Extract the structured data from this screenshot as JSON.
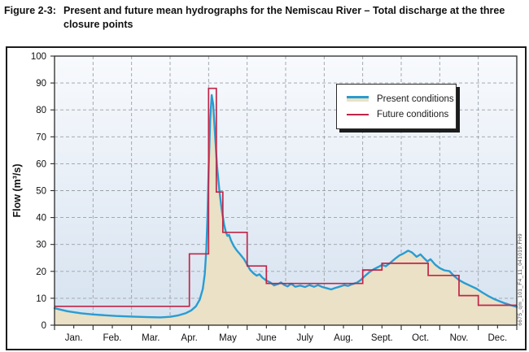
{
  "caption": {
    "label": "Figure 2-3:",
    "text": "Present and future mean hydrographs for the Nemiscau River – Total discharge at the three closure points"
  },
  "watermark": "6675_qm_101_F4_11_041019.FH9",
  "legend": {
    "items": [
      {
        "label": "Present conditions",
        "kind": "present"
      },
      {
        "label": "Future conditions",
        "kind": "future"
      }
    ]
  },
  "colors": {
    "present_line": "#2a9cd1",
    "present_fill": "#eae1c6",
    "future_line": "#c02547",
    "plot_bg_top": "#f8fafd",
    "plot_bg_bottom": "#d6e2f0",
    "gridline": "#9aa0a8",
    "frame": "#2a2a2a"
  },
  "chart_data": {
    "type": "line",
    "title": "Present and future mean hydrographs for the Nemiscau River – Total discharge at the three closure points",
    "xlabel": "",
    "ylabel": "Flow (m³/s)",
    "ylim": [
      0,
      100
    ],
    "yticks": [
      0,
      10,
      20,
      30,
      40,
      50,
      60,
      70,
      80,
      90,
      100
    ],
    "months": [
      "Jan.",
      "Feb.",
      "Mar.",
      "Apr.",
      "May",
      "June",
      "July",
      "Aug.",
      "Sept.",
      "Oct.",
      "Nov.",
      "Dec."
    ],
    "grid": true,
    "legend_position": "upper-right-inside",
    "x_unit": "month (0 = Jan 1, 12 = Dec 31)",
    "series": [
      {
        "name": "Present conditions",
        "style": "line-with-area",
        "points": [
          [
            0.0,
            6.3
          ],
          [
            0.15,
            5.8
          ],
          [
            0.33,
            5.2
          ],
          [
            0.5,
            4.8
          ],
          [
            0.7,
            4.4
          ],
          [
            1.0,
            4.0
          ],
          [
            1.3,
            3.7
          ],
          [
            1.6,
            3.4
          ],
          [
            2.0,
            3.2
          ],
          [
            2.4,
            3.0
          ],
          [
            2.75,
            2.9
          ],
          [
            3.0,
            3.1
          ],
          [
            3.2,
            3.6
          ],
          [
            3.4,
            4.4
          ],
          [
            3.55,
            5.5
          ],
          [
            3.67,
            7.0
          ],
          [
            3.77,
            9.5
          ],
          [
            3.85,
            13.5
          ],
          [
            3.9,
            19
          ],
          [
            3.94,
            28
          ],
          [
            3.97,
            40
          ],
          [
            4.0,
            57
          ],
          [
            4.04,
            76
          ],
          [
            4.08,
            85.5
          ],
          [
            4.12,
            82
          ],
          [
            4.17,
            70
          ],
          [
            4.22,
            59
          ],
          [
            4.28,
            50
          ],
          [
            4.34,
            43
          ],
          [
            4.4,
            37.5
          ],
          [
            4.45,
            34.5
          ],
          [
            4.49,
            33.2
          ],
          [
            4.53,
            33.6
          ],
          [
            4.58,
            31.5
          ],
          [
            4.65,
            29.5
          ],
          [
            4.73,
            27.8
          ],
          [
            4.82,
            26.3
          ],
          [
            4.92,
            24.5
          ],
          [
            5.0,
            22.5
          ],
          [
            5.08,
            20.5
          ],
          [
            5.17,
            19.2
          ],
          [
            5.25,
            18.4
          ],
          [
            5.32,
            18.9
          ],
          [
            5.4,
            17.6
          ],
          [
            5.5,
            16.6
          ],
          [
            5.6,
            15.9
          ],
          [
            5.7,
            14.8
          ],
          [
            5.8,
            15.3
          ],
          [
            5.88,
            15.9
          ],
          [
            5.96,
            15.0
          ],
          [
            6.05,
            14.4
          ],
          [
            6.14,
            15.4
          ],
          [
            6.25,
            14.3
          ],
          [
            6.38,
            14.7
          ],
          [
            6.5,
            14.2
          ],
          [
            6.62,
            14.9
          ],
          [
            6.74,
            14.3
          ],
          [
            6.84,
            14.9
          ],
          [
            6.95,
            14.2
          ],
          [
            7.05,
            13.8
          ],
          [
            7.18,
            13.3
          ],
          [
            7.3,
            13.9
          ],
          [
            7.42,
            14.4
          ],
          [
            7.52,
            14.9
          ],
          [
            7.62,
            14.6
          ],
          [
            7.72,
            15.2
          ],
          [
            7.85,
            15.8
          ],
          [
            7.95,
            16.8
          ],
          [
            8.05,
            18.2
          ],
          [
            8.18,
            19.8
          ],
          [
            8.3,
            20.9
          ],
          [
            8.4,
            21.6
          ],
          [
            8.5,
            22.4
          ],
          [
            8.6,
            21.9
          ],
          [
            8.72,
            23.2
          ],
          [
            8.85,
            24.8
          ],
          [
            8.95,
            25.9
          ],
          [
            9.05,
            26.6
          ],
          [
            9.18,
            27.7
          ],
          [
            9.28,
            27.0
          ],
          [
            9.4,
            25.4
          ],
          [
            9.5,
            26.3
          ],
          [
            9.6,
            24.8
          ],
          [
            9.68,
            23.7
          ],
          [
            9.76,
            24.5
          ],
          [
            9.88,
            22.5
          ],
          [
            10.0,
            21.2
          ],
          [
            10.12,
            20.4
          ],
          [
            10.25,
            20.1
          ],
          [
            10.38,
            18.2
          ],
          [
            10.5,
            16.8
          ],
          [
            10.65,
            15.6
          ],
          [
            10.8,
            14.6
          ],
          [
            10.95,
            13.6
          ],
          [
            11.1,
            12.2
          ],
          [
            11.25,
            10.9
          ],
          [
            11.4,
            9.8
          ],
          [
            11.55,
            8.9
          ],
          [
            11.7,
            8.1
          ],
          [
            11.85,
            7.4
          ],
          [
            12.0,
            6.8
          ]
        ]
      },
      {
        "name": "Future conditions",
        "style": "step",
        "steps": [
          {
            "from": 0.0,
            "to": 3.5,
            "value": 7
          },
          {
            "from": 3.5,
            "to": 4.0,
            "value": 26.5
          },
          {
            "from": 4.0,
            "to": 4.2,
            "value": 88
          },
          {
            "from": 4.2,
            "to": 4.37,
            "value": 49.5
          },
          {
            "from": 4.37,
            "to": 5.0,
            "value": 34.5
          },
          {
            "from": 5.0,
            "to": 5.5,
            "value": 22
          },
          {
            "from": 5.5,
            "to": 8.0,
            "value": 15.5
          },
          {
            "from": 8.0,
            "to": 8.5,
            "value": 20.5
          },
          {
            "from": 8.5,
            "to": 9.7,
            "value": 23
          },
          {
            "from": 9.7,
            "to": 10.5,
            "value": 18.5
          },
          {
            "from": 10.5,
            "to": 11.0,
            "value": 11
          },
          {
            "from": 11.0,
            "to": 12.0,
            "value": 7.4
          }
        ]
      }
    ]
  }
}
